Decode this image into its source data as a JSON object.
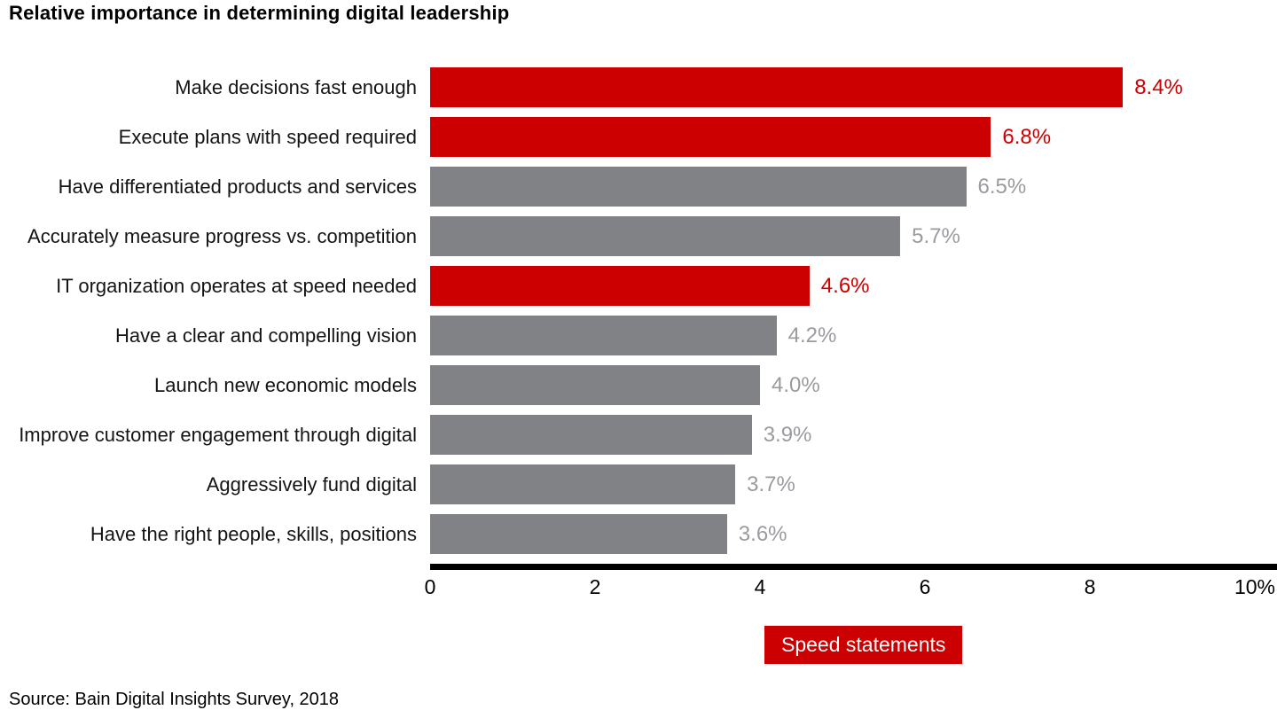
{
  "title": "Relative importance in determining digital leadership",
  "source": "Source: Bain Digital Insights Survey, 2018",
  "legend": {
    "label": "Speed statements",
    "color": "#cc0000",
    "text_color": "#ffffff"
  },
  "colors": {
    "highlight_bar": "#cc0000",
    "default_bar": "#808285",
    "highlight_value": "#cc0000",
    "default_value": "#9a9b9f",
    "axis": "#000000"
  },
  "chart_data": {
    "type": "bar",
    "orientation": "horizontal",
    "title": "Relative importance in determining digital leadership",
    "xlabel": "",
    "ylabel": "",
    "xlim": [
      0,
      10
    ],
    "x_ticks": [
      "0",
      "2",
      "4",
      "6",
      "8",
      "10%"
    ],
    "unit": "%",
    "grid": false,
    "legend_position": "bottom",
    "legend_entries": [
      "Speed statements"
    ],
    "categories": [
      "Make decisions fast enough",
      "Execute plans with speed required",
      "Have differentiated products and services",
      "Accurately measure progress vs. competition",
      "IT organization operates at speed needed",
      "Have a clear and compelling vision",
      "Launch new economic models",
      "Improve customer engagement through digital",
      "Aggressively fund digital",
      "Have the right people, skills, positions"
    ],
    "values": [
      8.4,
      6.8,
      6.5,
      5.7,
      4.6,
      4.2,
      4.0,
      3.9,
      3.7,
      3.6
    ],
    "value_labels": [
      "8.4%",
      "6.8%",
      "6.5%",
      "5.7%",
      "4.6%",
      "4.2%",
      "4.0%",
      "3.9%",
      "3.7%",
      "3.6%"
    ],
    "highlighted": [
      true,
      true,
      false,
      false,
      true,
      false,
      false,
      false,
      false,
      false
    ]
  }
}
